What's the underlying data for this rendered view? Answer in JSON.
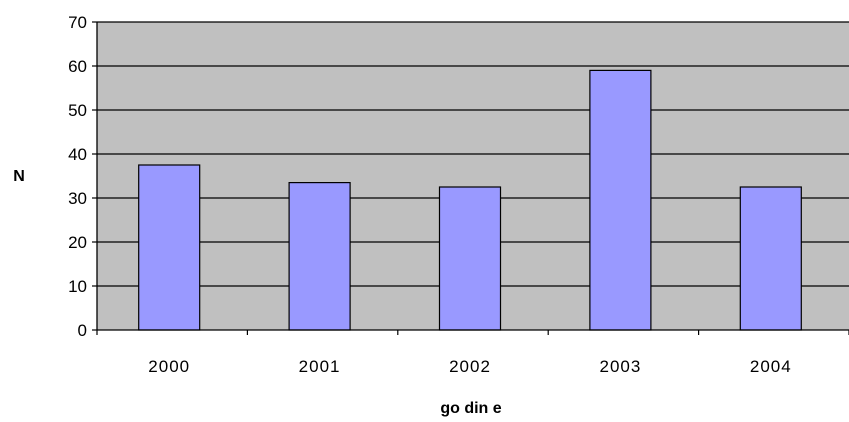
{
  "chart_data": {
    "type": "bar",
    "categories": [
      "2000",
      "2001",
      "2002",
      "2003",
      "2004"
    ],
    "values": [
      37.5,
      33.5,
      32.5,
      59,
      32.5
    ],
    "xlabel": "go din e",
    "ylabel": "N",
    "ylim": [
      0,
      70
    ],
    "yticks": [
      0,
      10,
      20,
      30,
      40,
      50,
      60,
      70
    ],
    "grid": true,
    "legend": "none",
    "colors": {
      "plot_background": "#c0c0c0",
      "bar_fill": "#9999ff",
      "bar_stroke": "#000000",
      "gridline": "#000000"
    }
  }
}
